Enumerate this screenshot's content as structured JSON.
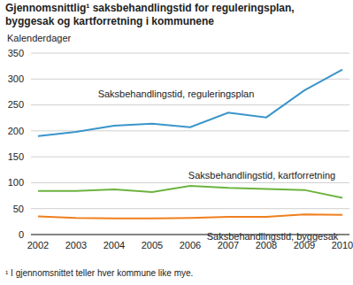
{
  "chart_data": {
    "type": "line",
    "title": "Gjennomsnittlig¹ saksbehandlingstid for reguleringsplan, byggesak og kartforretning i kommunene",
    "y_label": "Kalenderdager",
    "footnote": "¹ I gjennomsnittet teller hver kommune like mye.",
    "categories": [
      "2002",
      "2003",
      "2004",
      "2005",
      "2006",
      "2007",
      "2008",
      "2009",
      "2010"
    ],
    "series": [
      {
        "name": "Saksbehandlingstid, reguleringsplan",
        "color": "#3a95c9",
        "values": [
          190,
          198,
          210,
          214,
          207,
          235,
          226,
          278,
          318
        ]
      },
      {
        "name": "Saksbehandlingstid, kartforretning",
        "color": "#6db33f",
        "values": [
          84,
          84,
          87,
          82,
          94,
          90,
          88,
          86,
          71
        ]
      },
      {
        "name": "Saksbehandlingstid, byggesak",
        "color": "#f07f1e",
        "values": [
          35,
          32,
          31,
          31,
          32,
          34,
          34,
          39,
          38
        ]
      }
    ],
    "ylim": [
      0,
      350
    ],
    "yticks": [
      0,
      50,
      100,
      150,
      200,
      250,
      300,
      350
    ],
    "grid": true
  }
}
